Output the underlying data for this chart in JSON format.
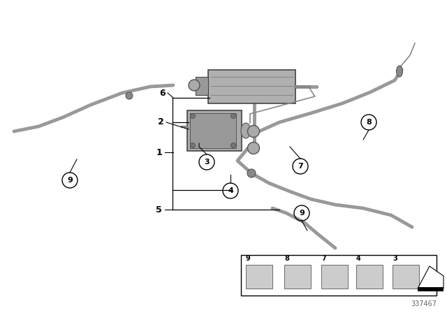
{
  "bg_color": "#ffffff",
  "cable_color": "#999999",
  "part_color": "#aaaaaa",
  "part_edge": "#555555",
  "label_color": "#000000",
  "leader_color": "#000000",
  "diagram_number": "337467",
  "figsize": [
    6.4,
    4.48
  ],
  "dpi": 100
}
